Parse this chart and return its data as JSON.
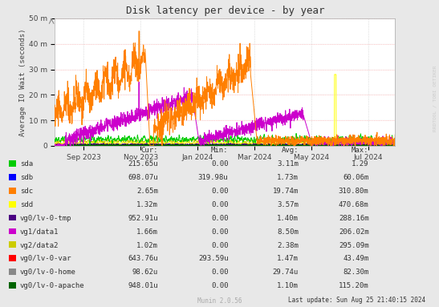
{
  "title": "Disk latency per device - by year",
  "ylabel": "Average IO Wait (seconds)",
  "watermark": "RRDTOOL / TOBI OETIKER",
  "footer": "Munin 2.0.56",
  "last_update": "Last update: Sun Aug 25 21:40:15 2024",
  "background_color": "#e8e8e8",
  "plot_bg_color": "#ffffff",
  "ylim": [
    0,
    50
  ],
  "ytick_labels": [
    "0",
    "10 m",
    "20 m",
    "30 m",
    "40 m",
    "50 m"
  ],
  "month_positions": [
    31,
    92,
    153,
    214,
    275,
    336
  ],
  "month_labels": [
    "Sep 2023",
    "Nov 2023",
    "Jan 2024",
    "Mar 2024",
    "May 2024",
    "Jul 2024"
  ],
  "legend_items": [
    {
      "label": "sda",
      "color": "#00cc00"
    },
    {
      "label": "sdb",
      "color": "#0000ff"
    },
    {
      "label": "sdc",
      "color": "#ff7f00"
    },
    {
      "label": "sdd",
      "color": "#ffff00"
    },
    {
      "label": "vg0/lv-0-tmp",
      "color": "#4b0082"
    },
    {
      "label": "vg1/data1",
      "color": "#cc00cc"
    },
    {
      "label": "vg2/data2",
      "color": "#cccc00"
    },
    {
      "label": "vg0/lv-0-var",
      "color": "#ff0000"
    },
    {
      "label": "vg0/lv-0-home",
      "color": "#888888"
    },
    {
      "label": "vg0/lv-0-apache",
      "color": "#006400"
    }
  ],
  "stats": [
    {
      "label": "sda",
      "cur": "215.65u",
      "min": "0.00",
      "avg": "3.11m",
      "max": "1.29"
    },
    {
      "label": "sdb",
      "cur": "698.07u",
      "min": "319.98u",
      "avg": "1.73m",
      "max": "60.06m"
    },
    {
      "label": "sdc",
      "cur": "2.65m",
      "min": "0.00",
      "avg": "19.74m",
      "max": "310.80m"
    },
    {
      "label": "sdd",
      "cur": "1.32m",
      "min": "0.00",
      "avg": "3.57m",
      "max": "470.68m"
    },
    {
      "label": "vg0/lv-0-tmp",
      "cur": "952.91u",
      "min": "0.00",
      "avg": "1.40m",
      "max": "288.16m"
    },
    {
      "label": "vg1/data1",
      "cur": "1.66m",
      "min": "0.00",
      "avg": "8.50m",
      "max": "206.02m"
    },
    {
      "label": "vg2/data2",
      "cur": "1.02m",
      "min": "0.00",
      "avg": "2.38m",
      "max": "295.09m"
    },
    {
      "label": "vg0/lv-0-var",
      "cur": "643.76u",
      "min": "293.59u",
      "avg": "1.47m",
      "max": "43.49m"
    },
    {
      "label": "vg0/lv-0-home",
      "cur": "98.62u",
      "min": "0.00",
      "avg": "29.74u",
      "max": "82.30m"
    },
    {
      "label": "vg0/lv-0-apache",
      "cur": "948.01u",
      "min": "0.00",
      "avg": "1.10m",
      "max": "115.20m"
    }
  ]
}
